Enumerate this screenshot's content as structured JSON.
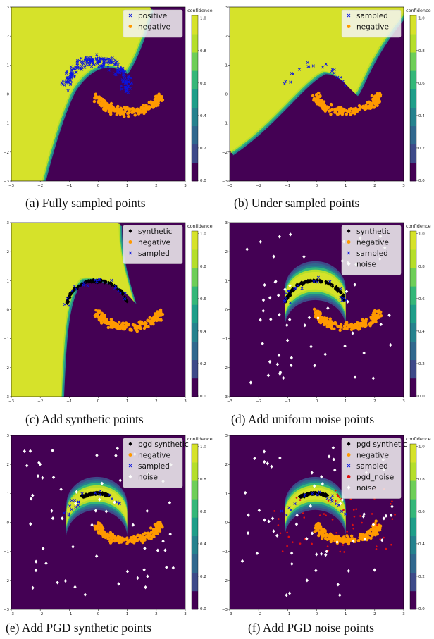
{
  "colors": {
    "c0": "#440154",
    "c1": "#3e4a89",
    "c2": "#31688e",
    "c3": "#26828e",
    "c4": "#1f9e89",
    "c5": "#35b779",
    "c6": "#6ece58",
    "c7": "#b5de2b",
    "c8": "#d6e22a",
    "positive": "#0a14e0",
    "negative": "#ff9900",
    "synthetic": "#000000",
    "noise": "#ffffff",
    "pgd_noise": "#e01010"
  },
  "colorbar": {
    "title": "confidence",
    "ticks": [
      "0.0",
      "0.2",
      "0.4",
      "0.6",
      "0.8",
      "1.0"
    ]
  },
  "chart_data": [
    {
      "id": "a",
      "type": "scatter",
      "caption": "(a) Fully sampled points",
      "background": "upper-left-green",
      "xlim": [
        -3,
        3
      ],
      "ylim": [
        -3,
        3
      ],
      "xticks": [
        "-3",
        "-2",
        "-1",
        "0",
        "1",
        "2",
        "3"
      ],
      "yticks": [
        "-3",
        "-2",
        "-1",
        "0",
        "1",
        "2",
        "3"
      ],
      "legend": [
        {
          "label": "positive",
          "marker": "x",
          "color": "#0a14e0"
        },
        {
          "label": "negative",
          "marker": "o",
          "color": "#ff9900"
        }
      ],
      "series": [
        {
          "name": "positive",
          "type": "upper-moon-full",
          "count": 200
        },
        {
          "name": "negative",
          "type": "lower-moon",
          "count": 200
        }
      ]
    },
    {
      "id": "b",
      "type": "scatter",
      "caption": "(b) Under sampled points",
      "background": "upper-left-green-b",
      "xlim": [
        -3,
        3
      ],
      "ylim": [
        -3,
        3
      ],
      "xticks": [
        "-3",
        "-2",
        "-1",
        "0",
        "1",
        "2",
        "3"
      ],
      "yticks": [
        "-3",
        "-2",
        "-1",
        "0",
        "1",
        "2",
        "3"
      ],
      "legend": [
        {
          "label": "sampled",
          "marker": "x",
          "color": "#0a14e0"
        },
        {
          "label": "negative",
          "marker": "o",
          "color": "#ff9900"
        }
      ],
      "series": [
        {
          "name": "sampled",
          "type": "upper-moon-sparse",
          "count": 20
        },
        {
          "name": "negative",
          "type": "lower-moon",
          "count": 200
        }
      ]
    },
    {
      "id": "c",
      "type": "scatter",
      "caption": "(c) Add synthetic points",
      "background": "upper-left-green-c",
      "xlim": [
        -3,
        3
      ],
      "ylim": [
        -3,
        3
      ],
      "xticks": [
        "-3",
        "-2",
        "-1",
        "0",
        "1",
        "2",
        "3"
      ],
      "yticks": [
        "-3",
        "-2",
        "-1",
        "0",
        "1",
        "2",
        "3"
      ],
      "legend": [
        {
          "label": "synthetic",
          "marker": "D",
          "color": "#000000"
        },
        {
          "label": "negative",
          "marker": "o",
          "color": "#ff9900"
        },
        {
          "label": "sampled",
          "marker": "x",
          "color": "#0a14e0"
        }
      ],
      "series": [
        {
          "name": "synthetic",
          "type": "upper-moon-thin",
          "count": 120
        },
        {
          "name": "negative",
          "type": "lower-moon",
          "count": 200
        },
        {
          "name": "sampled",
          "type": "upper-moon-sparse",
          "count": 20
        }
      ]
    },
    {
      "id": "d",
      "type": "scatter",
      "caption": "(d) Add uniform noise points",
      "background": "purple-band",
      "xlim": [
        -3,
        3
      ],
      "ylim": [
        -3,
        3
      ],
      "xticks": [
        "-3",
        "-2",
        "-1",
        "0",
        "1",
        "2",
        "3"
      ],
      "yticks": [
        "-3",
        "-2",
        "-1",
        "0",
        "1",
        "2",
        "3"
      ],
      "legend": [
        {
          "label": "synthetic",
          "marker": "D",
          "color": "#000000"
        },
        {
          "label": "negative",
          "marker": "o",
          "color": "#ff9900"
        },
        {
          "label": "sampled",
          "marker": "x",
          "color": "#0a14e0"
        },
        {
          "label": "noise",
          "marker": "D",
          "color": "#ffffff"
        }
      ],
      "series": [
        {
          "name": "synthetic",
          "type": "upper-moon-thin",
          "count": 120
        },
        {
          "name": "negative",
          "type": "lower-moon",
          "count": 200
        },
        {
          "name": "sampled",
          "type": "upper-moon-sparse",
          "count": 20
        },
        {
          "name": "noise",
          "type": "uniform",
          "count": 60
        }
      ]
    },
    {
      "id": "e",
      "type": "scatter",
      "caption": "(e) Add PGD synthetic points",
      "background": "purple-band-narrow",
      "xlim": [
        -3,
        3
      ],
      "ylim": [
        -3,
        3
      ],
      "xticks": [
        "-3",
        "-2",
        "-1",
        "0",
        "1",
        "2",
        "3"
      ],
      "yticks": [
        "-3",
        "-2",
        "-1",
        "0",
        "1",
        "2",
        "3"
      ],
      "legend": [
        {
          "label": "pgd synthetic",
          "marker": "D",
          "color": "#000000"
        },
        {
          "label": "negative",
          "marker": "o",
          "color": "#ff9900"
        },
        {
          "label": "sampled",
          "marker": "x",
          "color": "#0a14e0"
        },
        {
          "label": "noise",
          "marker": "D",
          "color": "#ffffff"
        }
      ],
      "series": [
        {
          "name": "pgd synthetic",
          "type": "upper-moon-cluster",
          "count": 120
        },
        {
          "name": "negative",
          "type": "lower-moon",
          "count": 200
        },
        {
          "name": "sampled",
          "type": "upper-moon-sparse",
          "count": 20
        },
        {
          "name": "noise",
          "type": "uniform",
          "count": 60
        }
      ]
    },
    {
      "id": "f",
      "type": "scatter",
      "caption": "(f) Add PGD noise points",
      "background": "purple-band-narrow",
      "xlim": [
        -3,
        3
      ],
      "ylim": [
        -3,
        3
      ],
      "xticks": [
        "-3",
        "-2",
        "-1",
        "0",
        "1",
        "2",
        "3"
      ],
      "yticks": [
        "-3",
        "-2",
        "-1",
        "0",
        "1",
        "2",
        "3"
      ],
      "legend": [
        {
          "label": "pgd synthetic",
          "marker": "D",
          "color": "#000000"
        },
        {
          "label": "negative",
          "marker": "o",
          "color": "#ff9900"
        },
        {
          "label": "sampled",
          "marker": "x",
          "color": "#0a14e0"
        },
        {
          "label": "pgd_noise",
          "marker": "o",
          "color": "#e01010"
        },
        {
          "label": "noise",
          "marker": "D",
          "color": "#ffffff"
        }
      ],
      "series": [
        {
          "name": "pgd synthetic",
          "type": "upper-moon-cluster",
          "count": 120
        },
        {
          "name": "negative",
          "type": "lower-moon",
          "count": 200
        },
        {
          "name": "sampled",
          "type": "upper-moon-sparse",
          "count": 20
        },
        {
          "name": "pgd_noise",
          "type": "scatter-near-moons",
          "count": 60
        },
        {
          "name": "noise",
          "type": "uniform",
          "count": 60
        }
      ]
    }
  ]
}
